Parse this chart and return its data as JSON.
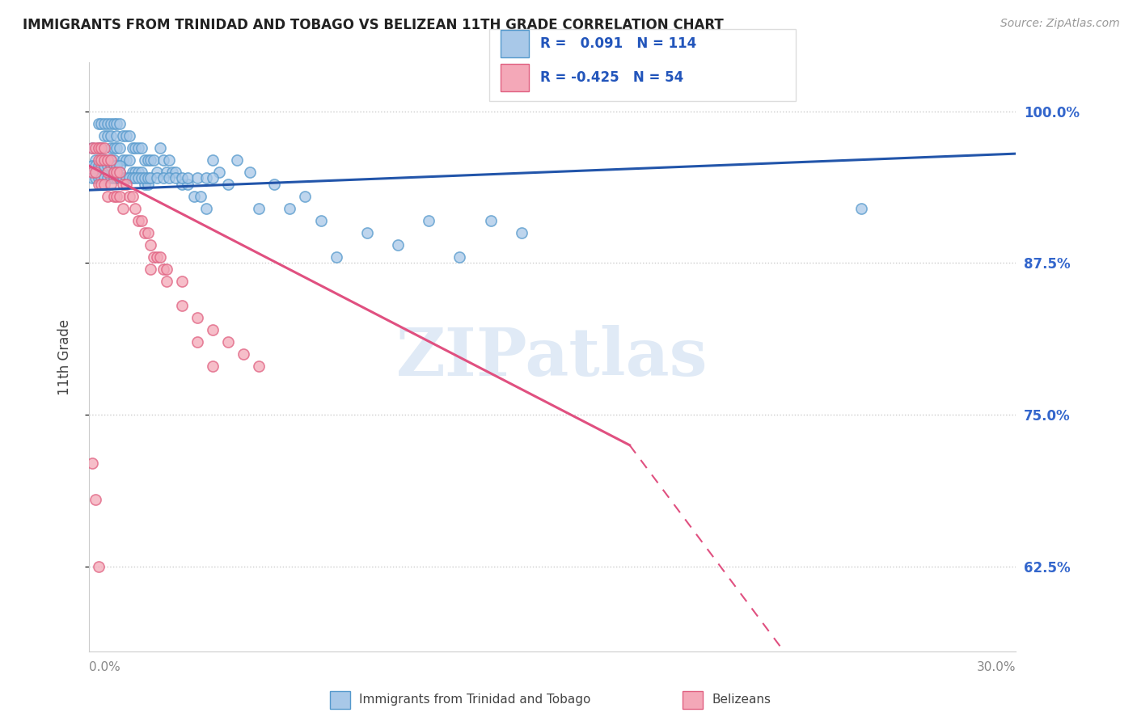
{
  "title": "IMMIGRANTS FROM TRINIDAD AND TOBAGO VS BELIZEAN 11TH GRADE CORRELATION CHART",
  "source": "Source: ZipAtlas.com",
  "ylabel": "11th Grade",
  "ytick_vals": [
    0.625,
    0.75,
    0.875,
    1.0
  ],
  "ytick_labels": [
    "62.5%",
    "75.0%",
    "87.5%",
    "100.0%"
  ],
  "xlim": [
    0.0,
    0.3
  ],
  "ylim": [
    0.555,
    1.04
  ],
  "blue_R": "0.091",
  "blue_N": "114",
  "pink_R": "-0.425",
  "pink_N": "54",
  "blue_color": "#a8c8e8",
  "blue_edge_color": "#5599cc",
  "pink_color": "#f4a8b8",
  "pink_edge_color": "#e06080",
  "blue_line_color": "#2255aa",
  "pink_line_color": "#e05080",
  "watermark_text": "ZIPatlas",
  "blue_trendline": [
    [
      0.0,
      0.935
    ],
    [
      0.3,
      0.965
    ]
  ],
  "pink_trendline_solid": [
    [
      0.0,
      0.955
    ],
    [
      0.175,
      0.725
    ]
  ],
  "pink_trendline_dash": [
    [
      0.175,
      0.725
    ],
    [
      0.3,
      0.3
    ]
  ],
  "blue_scatter_x": [
    0.001,
    0.002,
    0.003,
    0.003,
    0.004,
    0.004,
    0.005,
    0.005,
    0.005,
    0.006,
    0.006,
    0.006,
    0.007,
    0.007,
    0.007,
    0.007,
    0.008,
    0.008,
    0.008,
    0.009,
    0.009,
    0.009,
    0.009,
    0.01,
    0.01,
    0.01,
    0.011,
    0.011,
    0.012,
    0.012,
    0.013,
    0.013,
    0.014,
    0.014,
    0.015,
    0.015,
    0.016,
    0.016,
    0.017,
    0.017,
    0.018,
    0.018,
    0.019,
    0.019,
    0.02,
    0.021,
    0.022,
    0.023,
    0.024,
    0.025,
    0.026,
    0.027,
    0.028,
    0.03,
    0.032,
    0.034,
    0.036,
    0.038,
    0.04,
    0.042,
    0.045,
    0.048,
    0.052,
    0.055,
    0.06,
    0.065,
    0.07,
    0.075,
    0.08,
    0.09,
    0.1,
    0.11,
    0.12,
    0.13,
    0.14,
    0.25,
    0.001,
    0.001,
    0.002,
    0.002,
    0.003,
    0.003,
    0.004,
    0.004,
    0.005,
    0.005,
    0.006,
    0.006,
    0.007,
    0.007,
    0.008,
    0.008,
    0.009,
    0.009,
    0.01,
    0.01,
    0.011,
    0.012,
    0.013,
    0.014,
    0.015,
    0.016,
    0.017,
    0.018,
    0.019,
    0.02,
    0.022,
    0.024,
    0.026,
    0.028,
    0.03,
    0.032,
    0.035,
    0.038,
    0.04
  ],
  "blue_scatter_y": [
    0.97,
    0.96,
    0.99,
    0.97,
    0.99,
    0.97,
    0.99,
    0.98,
    0.96,
    0.99,
    0.98,
    0.96,
    0.99,
    0.98,
    0.97,
    0.96,
    0.99,
    0.97,
    0.96,
    0.99,
    0.98,
    0.97,
    0.95,
    0.99,
    0.97,
    0.95,
    0.98,
    0.96,
    0.98,
    0.96,
    0.98,
    0.96,
    0.97,
    0.95,
    0.97,
    0.95,
    0.97,
    0.95,
    0.97,
    0.95,
    0.96,
    0.94,
    0.96,
    0.94,
    0.96,
    0.96,
    0.95,
    0.97,
    0.96,
    0.95,
    0.96,
    0.95,
    0.95,
    0.94,
    0.94,
    0.93,
    0.93,
    0.92,
    0.96,
    0.95,
    0.94,
    0.96,
    0.95,
    0.92,
    0.94,
    0.92,
    0.93,
    0.91,
    0.88,
    0.9,
    0.89,
    0.91,
    0.88,
    0.91,
    0.9,
    0.92,
    0.955,
    0.945,
    0.955,
    0.945,
    0.955,
    0.945,
    0.955,
    0.945,
    0.955,
    0.945,
    0.955,
    0.945,
    0.955,
    0.945,
    0.955,
    0.945,
    0.955,
    0.945,
    0.955,
    0.945,
    0.945,
    0.945,
    0.945,
    0.945,
    0.945,
    0.945,
    0.945,
    0.945,
    0.945,
    0.945,
    0.945,
    0.945,
    0.945,
    0.945,
    0.945,
    0.945,
    0.945,
    0.945,
    0.945
  ],
  "pink_scatter_x": [
    0.001,
    0.001,
    0.002,
    0.002,
    0.003,
    0.003,
    0.003,
    0.004,
    0.004,
    0.004,
    0.005,
    0.005,
    0.005,
    0.006,
    0.006,
    0.006,
    0.007,
    0.007,
    0.008,
    0.008,
    0.009,
    0.009,
    0.01,
    0.01,
    0.011,
    0.011,
    0.012,
    0.013,
    0.014,
    0.015,
    0.016,
    0.017,
    0.018,
    0.019,
    0.02,
    0.021,
    0.022,
    0.023,
    0.024,
    0.025,
    0.03,
    0.035,
    0.04,
    0.045,
    0.05,
    0.055,
    0.02,
    0.025,
    0.03,
    0.035,
    0.04,
    0.001,
    0.002,
    0.003
  ],
  "pink_scatter_y": [
    0.97,
    0.95,
    0.97,
    0.95,
    0.97,
    0.96,
    0.94,
    0.97,
    0.96,
    0.94,
    0.97,
    0.96,
    0.94,
    0.96,
    0.95,
    0.93,
    0.96,
    0.94,
    0.95,
    0.93,
    0.95,
    0.93,
    0.95,
    0.93,
    0.94,
    0.92,
    0.94,
    0.93,
    0.93,
    0.92,
    0.91,
    0.91,
    0.9,
    0.9,
    0.89,
    0.88,
    0.88,
    0.88,
    0.87,
    0.86,
    0.84,
    0.83,
    0.82,
    0.81,
    0.8,
    0.79,
    0.87,
    0.87,
    0.86,
    0.81,
    0.79,
    0.71,
    0.68,
    0.625
  ]
}
